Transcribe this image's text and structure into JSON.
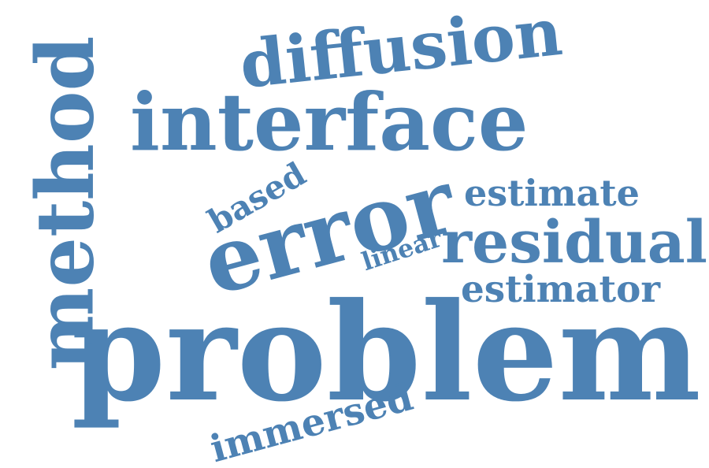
{
  "word_cloud": {
    "word_color": "#4d82b4",
    "background": "#ffffff",
    "words": [
      {
        "text": "problem"
      },
      {
        "text": "error"
      },
      {
        "text": "interface"
      },
      {
        "text": "method"
      },
      {
        "text": "residual"
      },
      {
        "text": "diffusion"
      },
      {
        "text": "estimate"
      },
      {
        "text": "estimator"
      },
      {
        "text": "immersed"
      },
      {
        "text": "based"
      },
      {
        "text": "linear"
      }
    ]
  }
}
